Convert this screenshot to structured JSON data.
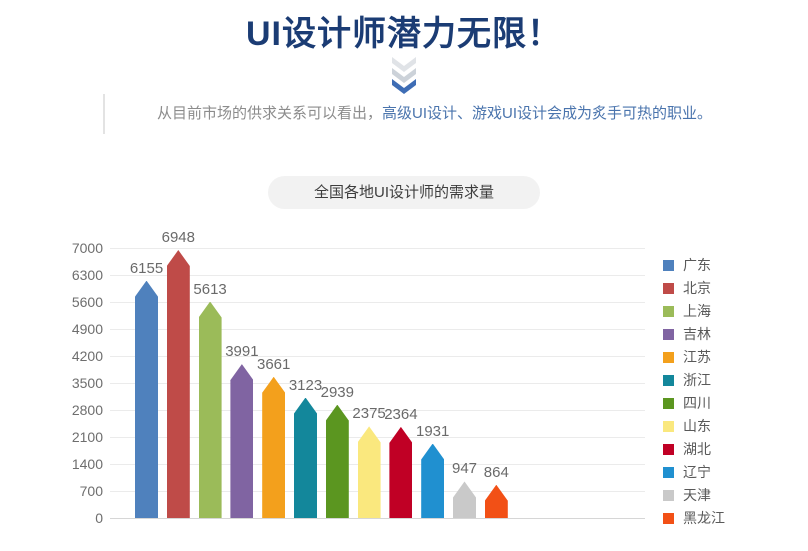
{
  "header": {
    "title": "UI设计师潜力无限！",
    "intro_plain": "从目前市场的供求关系可以看出，",
    "intro_highlight": "高级UI设计、游戏UI设计会成为炙手可热的职业。",
    "scroll_icon": "chevron-double-down"
  },
  "section": {
    "badge_label": "全国各地UI设计师的需求量"
  },
  "colors": {
    "title": "#1b3c74",
    "intro_plain": "#8c8c8c",
    "intro_highlight": "#4a74ad",
    "badge_bg": "#f2f2f2",
    "badge_text": "#3d3d3d",
    "gridline": "#ebebeb",
    "baseline": "#d6d6d6",
    "tick_label": "#6e6e6e",
    "value_label": "#6a6a6a",
    "legend_label": "#595959",
    "chevron_top": "#e0e3e7",
    "chevron_mid": "#ccd2d9",
    "chevron_bottom": "#3e6db5"
  },
  "chart_data": {
    "type": "bar",
    "title": "全国各地UI设计师的需求量",
    "categories": [
      "广东",
      "北京",
      "上海",
      "吉林",
      "江苏",
      "浙江",
      "四川",
      "山东",
      "湖北",
      "辽宁",
      "天津",
      "黑龙江"
    ],
    "values": [
      6155,
      6948,
      5613,
      3991,
      3661,
      3123,
      2939,
      2375,
      2364,
      1931,
      947,
      864
    ],
    "bar_colors": [
      "#4f81bd",
      "#bf4b48",
      "#9bbb59",
      "#8064a2",
      "#f3a01c",
      "#13879b",
      "#5b9620",
      "#fae87e",
      "#c00025",
      "#2090d0",
      "#c9c9c9",
      "#f25016"
    ],
    "y_ticks": [
      0,
      700,
      1400,
      2100,
      2800,
      3500,
      4200,
      4900,
      5600,
      6300,
      7000
    ],
    "ylim": [
      0,
      7000
    ],
    "xlabel": "",
    "ylabel": "",
    "grid": true,
    "legend_position": "right",
    "bar_shape": "pointed-top"
  }
}
